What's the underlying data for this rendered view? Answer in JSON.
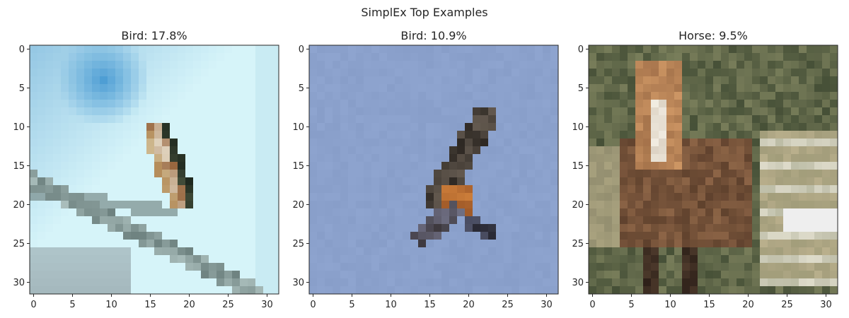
{
  "figure": {
    "suptitle": "SimplEx Top Examples"
  },
  "chart_data": [
    {
      "type": "image",
      "title": "Bird: 17.8%",
      "label": "Bird",
      "weight_percent": 17.8,
      "xlim": [
        -0.5,
        31.5
      ],
      "ylim": [
        31.5,
        -0.5
      ],
      "xticks": [
        0,
        5,
        10,
        15,
        20,
        25,
        30
      ],
      "yticks": [
        0,
        5,
        10,
        15,
        20,
        25,
        30
      ],
      "content": "bird perched on a diagonal branch against pale blue sky"
    },
    {
      "type": "image",
      "title": "Bird: 10.9%",
      "label": "Bird",
      "weight_percent": 10.9,
      "xlim": [
        -0.5,
        31.5
      ],
      "ylim": [
        31.5,
        -0.5
      ],
      "xticks": [
        0,
        5,
        10,
        15,
        20,
        25,
        30
      ],
      "yticks": [
        0,
        5,
        10,
        15,
        20,
        25,
        30
      ],
      "content": "bird in flight against flat blue-grey sky"
    },
    {
      "type": "image",
      "title": "Horse: 9.5%",
      "label": "Horse",
      "weight_percent": 9.5,
      "xlim": [
        -0.5,
        31.5
      ],
      "ylim": [
        31.5,
        -0.5
      ],
      "xticks": [
        0,
        5,
        10,
        15,
        20,
        25,
        30
      ],
      "yticks": [
        0,
        5,
        10,
        15,
        20,
        25,
        30
      ],
      "content": "brown horse facing forward, fence and grass behind"
    }
  ],
  "colors": {
    "axis": "#262626",
    "sky_light": "#d2f1f8",
    "sky_blue": "#8aa1cc",
    "grass": "#5b6345"
  }
}
